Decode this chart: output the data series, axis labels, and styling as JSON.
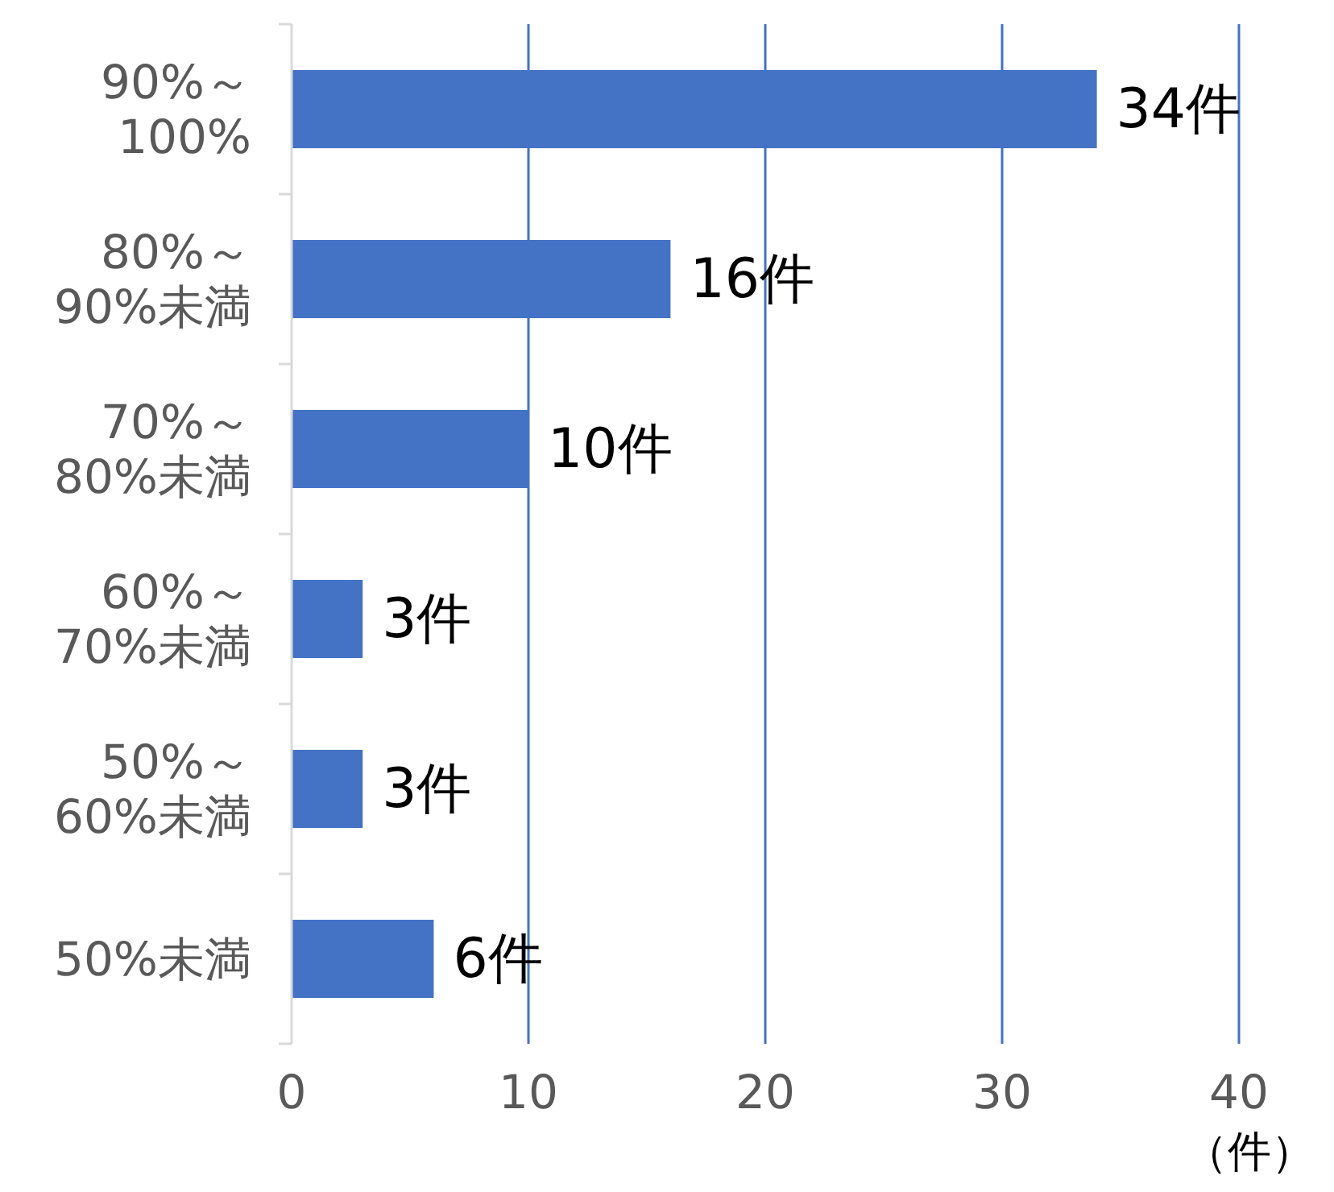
{
  "chart_data": {
    "type": "bar",
    "orientation": "horizontal",
    "categories": [
      "90%～100%",
      "80%～90%未満",
      "70%～80%未満",
      "60%～70%未満",
      "50%～60%未満",
      "50%未満"
    ],
    "values": [
      34,
      16,
      10,
      3,
      3,
      6
    ],
    "value_labels": [
      "34件",
      "16件",
      "10件",
      "3件",
      "3件",
      "6件"
    ],
    "color": "#4472c4",
    "xlim": [
      0,
      40
    ],
    "xticks": [
      0,
      10,
      20,
      30,
      40
    ],
    "xlabel": "（件）",
    "grid": "x"
  }
}
